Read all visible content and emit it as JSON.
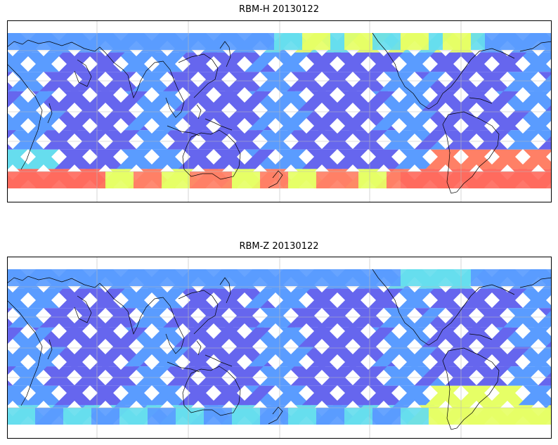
{
  "figure": {
    "panels": [
      {
        "id": "top",
        "title": "RBM-H 20130122",
        "variable": "RBM-H",
        "date": "20130122"
      },
      {
        "id": "bottom",
        "title": "RBM-Z 20130122",
        "variable": "RBM-Z",
        "date": "20130122"
      }
    ],
    "map": {
      "projection": "equirectangular",
      "central_longitude": "Pacific-centered (approx. 180)",
      "gridlines": true,
      "coastlines": true,
      "data_coverage": "satellite swath tracks in a diamond lattice, approx. 65S to 65N",
      "colormap": "jet (blue low, red high)"
    },
    "colors": {
      "low": "#6666ee",
      "low_mid": "#5a9cff",
      "mid": "#66ddee",
      "mid_high": "#e6ff66",
      "high": "#ff8066",
      "highest": "#ff6b5e"
    }
  }
}
